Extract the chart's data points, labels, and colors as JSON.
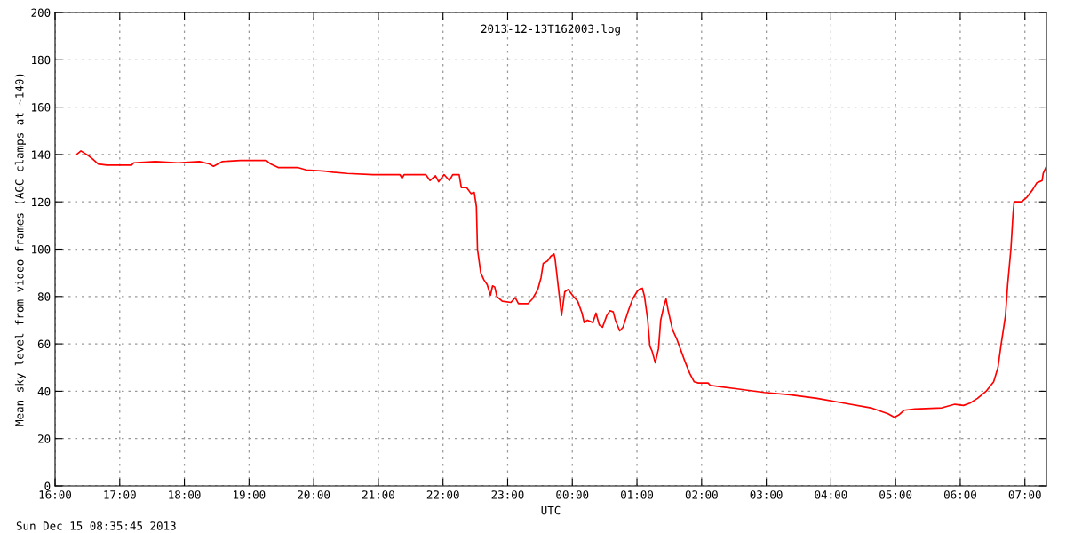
{
  "chart_data": {
    "type": "line",
    "title": "2013-12-13T162003.log",
    "xlabel": "UTC",
    "ylabel": "Mean sky level from video frames (AGC clamps at ~140)",
    "annotations": [
      "Sun Dec 15 08:35:45 2013"
    ],
    "series": [
      {
        "color": "#ff0000",
        "x": [
          "2013-12-13T16:20",
          "2013-12-13T16:24",
          "2013-12-13T16:31",
          "2013-12-13T16:35",
          "2013-12-13T16:40",
          "2013-12-13T16:48",
          "2013-12-13T17:04",
          "2013-12-13T17:11",
          "2013-12-13T17:13",
          "2013-12-13T17:33",
          "2013-12-13T17:54",
          "2013-12-13T18:14",
          "2013-12-13T18:23",
          "2013-12-13T18:27",
          "2013-12-13T18:35",
          "2013-12-13T18:52",
          "2013-12-13T19:16",
          "2013-12-13T19:20",
          "2013-12-13T19:27",
          "2013-12-13T19:45",
          "2013-12-13T19:53",
          "2013-12-13T20:10",
          "2013-12-13T20:18",
          "2013-12-13T20:31",
          "2013-12-13T20:55",
          "2013-12-13T21:20",
          "2013-12-13T21:22",
          "2013-12-13T21:24",
          "2013-12-13T21:44",
          "2013-12-13T21:48",
          "2013-12-13T21:53",
          "2013-12-13T21:56",
          "2013-12-13T22:01",
          "2013-12-13T22:06",
          "2013-12-13T22:09",
          "2013-12-13T22:15",
          "2013-12-13T22:17",
          "2013-12-13T22:22",
          "2013-12-13T22:26",
          "2013-12-13T22:29",
          "2013-12-13T22:31",
          "2013-12-13T22:32",
          "2013-12-13T22:35",
          "2013-12-13T22:38",
          "2013-12-13T22:41",
          "2013-12-13T22:44",
          "2013-12-13T22:46",
          "2013-12-13T22:48",
          "2013-12-13T22:50",
          "2013-12-13T22:55",
          "2013-12-13T23:03",
          "2013-12-13T23:07",
          "2013-12-13T23:10",
          "2013-12-13T23:19",
          "2013-12-13T23:23",
          "2013-12-13T23:28",
          "2013-12-13T23:31",
          "2013-12-13T23:33",
          "2013-12-13T23:37",
          "2013-12-13T23:40",
          "2013-12-13T23:43",
          "2013-12-13T23:44",
          "2013-12-13T23:47",
          "2013-12-13T23:50",
          "2013-12-13T23:53",
          "2013-12-13T23:56",
          "2013-12-14T00:01",
          "2013-12-14T00:05",
          "2013-12-14T00:09",
          "2013-12-14T00:11",
          "2013-12-14T00:14",
          "2013-12-14T00:19",
          "2013-12-14T00:22",
          "2013-12-14T00:25",
          "2013-12-14T00:28",
          "2013-12-14T00:32",
          "2013-12-14T00:35",
          "2013-12-14T00:38",
          "2013-12-14T00:40",
          "2013-12-14T00:44",
          "2013-12-14T00:47",
          "2013-12-14T00:52",
          "2013-12-14T00:56",
          "2013-12-14T01:00",
          "2013-12-14T01:02",
          "2013-12-14T01:05",
          "2013-12-14T01:07",
          "2013-12-14T01:10",
          "2013-12-14T01:12",
          "2013-12-14T01:14",
          "2013-12-14T01:17",
          "2013-12-14T01:20",
          "2013-12-14T01:22",
          "2013-12-14T01:25",
          "2013-12-14T01:27",
          "2013-12-14T01:29",
          "2013-12-14T01:33",
          "2013-12-14T01:37",
          "2013-12-14T01:41",
          "2013-12-14T01:45",
          "2013-12-14T01:49",
          "2013-12-14T01:53",
          "2013-12-14T01:57",
          "2013-12-14T02:06",
          "2013-12-14T02:08",
          "2013-12-14T02:16",
          "2013-12-14T02:33",
          "2013-12-14T02:58",
          "2013-12-14T03:22",
          "2013-12-14T03:47",
          "2013-12-14T04:12",
          "2013-12-14T04:37",
          "2013-12-14T04:53",
          "2013-12-14T04:59",
          "2013-12-14T05:03",
          "2013-12-14T05:08",
          "2013-12-14T05:18",
          "2013-12-14T05:43",
          "2013-12-14T05:55",
          "2013-12-14T06:03",
          "2013-12-14T06:09",
          "2013-12-14T06:16",
          "2013-12-14T06:24",
          "2013-12-14T06:31",
          "2013-12-14T06:35",
          "2013-12-14T06:38",
          "2013-12-14T06:42",
          "2013-12-14T06:44",
          "2013-12-14T06:47",
          "2013-12-14T06:49",
          "2013-12-14T06:50",
          "2013-12-14T06:57",
          "2013-12-14T07:02",
          "2013-12-14T07:07",
          "2013-12-14T07:11",
          "2013-12-14T07:16",
          "2013-12-14T07:17",
          "2013-12-14T07:20"
        ],
        "values": [
          140,
          141.5,
          139.5,
          138,
          136,
          135.5,
          135.5,
          135.5,
          136.5,
          137,
          136.5,
          137,
          136,
          135,
          137,
          137.5,
          137.5,
          136,
          134.5,
          134.5,
          133.5,
          133,
          132.5,
          132,
          131.5,
          131.5,
          130,
          131.5,
          131.5,
          129,
          131,
          128.5,
          131.5,
          129,
          131.5,
          131.5,
          126,
          126,
          123.5,
          124,
          118,
          100,
          90,
          87,
          85,
          80.5,
          84.5,
          84,
          80,
          78,
          77.5,
          79.5,
          77,
          77,
          79,
          83,
          88,
          94,
          95,
          97,
          98,
          96,
          84,
          72,
          82,
          83,
          80,
          78,
          73,
          69,
          70,
          69,
          73,
          68,
          67,
          72,
          74,
          73.5,
          70,
          65.5,
          67,
          74,
          79,
          82,
          83,
          83.5,
          80,
          70,
          59,
          57,
          52,
          58,
          70,
          76,
          79,
          74,
          66,
          62,
          57,
          52,
          47.5,
          44,
          43.5,
          43.5,
          42.5,
          42,
          41,
          39.5,
          38.5,
          37,
          35,
          33,
          30.5,
          29,
          30,
          32,
          32.5,
          33,
          34.5,
          34,
          35,
          37,
          40,
          44,
          50,
          60,
          72,
          85,
          100,
          115,
          120,
          120,
          122,
          125,
          128,
          129,
          132,
          135
        ]
      }
    ],
    "xlim": [
      "2013-12-13T16:00",
      "2013-12-14T07:20"
    ],
    "xticks": [
      {
        "value": "2013-12-13T16:00",
        "label": "16:00"
      },
      {
        "value": "2013-12-13T17:00",
        "label": "17:00"
      },
      {
        "value": "2013-12-13T18:00",
        "label": "18:00"
      },
      {
        "value": "2013-12-13T19:00",
        "label": "19:00"
      },
      {
        "value": "2013-12-13T20:00",
        "label": "20:00"
      },
      {
        "value": "2013-12-13T21:00",
        "label": "21:00"
      },
      {
        "value": "2013-12-13T22:00",
        "label": "22:00"
      },
      {
        "value": "2013-12-13T23:00",
        "label": "23:00"
      },
      {
        "value": "2013-12-14T00:00",
        "label": "00:00"
      },
      {
        "value": "2013-12-14T01:00",
        "label": "01:00"
      },
      {
        "value": "2013-12-14T02:00",
        "label": "02:00"
      },
      {
        "value": "2013-12-14T03:00",
        "label": "03:00"
      },
      {
        "value": "2013-12-14T04:00",
        "label": "04:00"
      },
      {
        "value": "2013-12-14T05:00",
        "label": "05:00"
      },
      {
        "value": "2013-12-14T06:00",
        "label": "06:00"
      },
      {
        "value": "2013-12-14T07:00",
        "label": "07:00"
      }
    ],
    "ylim": [
      0,
      200
    ],
    "yticks": [
      0,
      20,
      40,
      60,
      80,
      100,
      120,
      140,
      160,
      180,
      200
    ],
    "grid": true,
    "line_style": "solid",
    "marker": "none",
    "legend": false
  }
}
